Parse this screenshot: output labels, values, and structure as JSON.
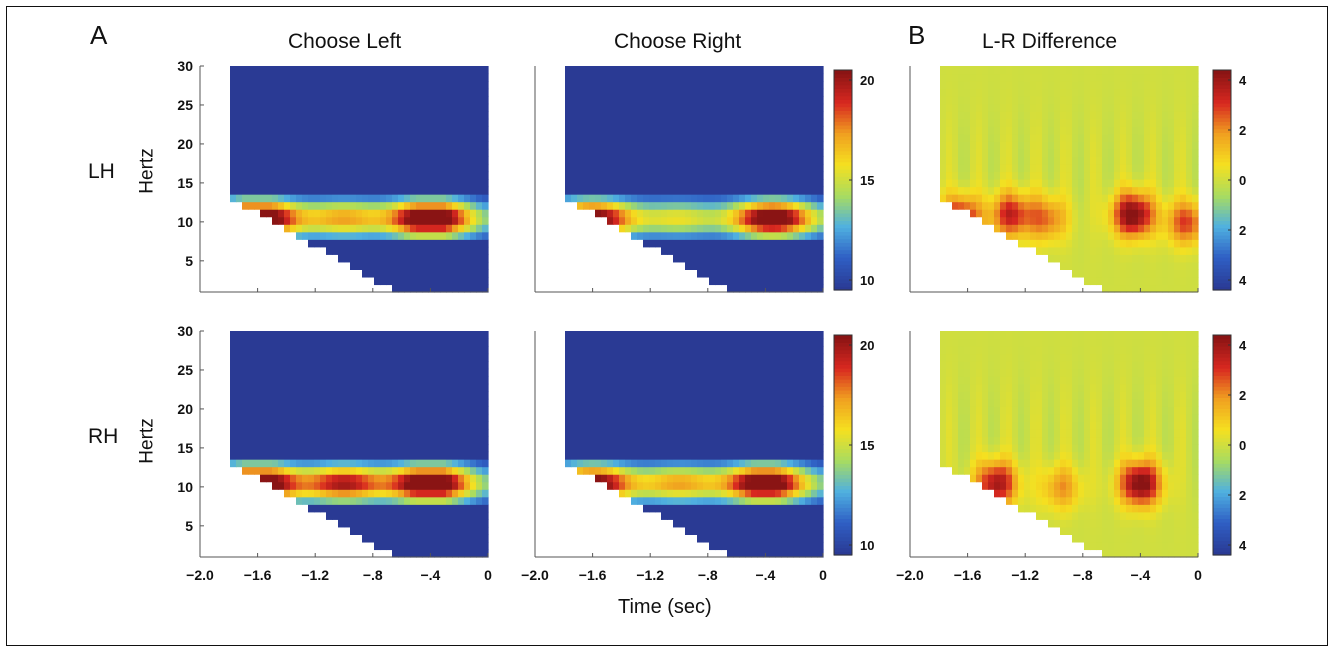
{
  "figure": {
    "panel_labels": [
      "A",
      "B"
    ],
    "column_titles": [
      "Choose Left",
      "Choose Right",
      "L-R Difference"
    ],
    "row_labels": [
      "LH",
      "RH"
    ],
    "ylabel": "Hertz",
    "xlabel": "Time (sec)",
    "colors": {
      "colormap": [
        "#2a3a94",
        "#2f5fc4",
        "#4fb0e0",
        "#a8dc60",
        "#f5e020",
        "#f0a020",
        "#d82820",
        "#8a1414"
      ],
      "background_field": "#a8d870"
    }
  },
  "chart_data": [
    {
      "type": "heatmap",
      "column": "Choose Left",
      "row": "LH",
      "xlim": [
        -2.0,
        0
      ],
      "ylim": [
        1,
        30
      ],
      "xticks": [
        "-2.0",
        "-1.6",
        "-1.2",
        "-.8",
        "-.4",
        "0"
      ],
      "yticks": [
        "5",
        "10",
        "15",
        "20",
        "25",
        "30"
      ],
      "colorbar": null,
      "band": {
        "freq_center": 10.5,
        "peaks": [
          [
            -1.6,
            1.0
          ],
          [
            -1.0,
            0.45
          ],
          [
            -0.4,
            1.0
          ]
        ]
      }
    },
    {
      "type": "heatmap",
      "column": "Choose Right",
      "row": "LH",
      "xlim": [
        -2.0,
        0
      ],
      "ylim": [
        1,
        30
      ],
      "xticks": [
        "-2.0",
        "-1.6",
        "-1.2",
        "-.8",
        "-.4",
        "0"
      ],
      "yticks": [],
      "colorbar": {
        "ticks": [
          "20",
          "15",
          "10"
        ],
        "range": [
          9,
          21
        ]
      },
      "band": {
        "freq_center": 10.5,
        "peaks": [
          [
            -1.6,
            0.85
          ],
          [
            -1.0,
            0.3
          ],
          [
            -0.35,
            0.9
          ]
        ]
      }
    },
    {
      "type": "heatmap",
      "column": "L-R Difference",
      "row": "LH",
      "xlim": [
        -2.0,
        0
      ],
      "ylim": [
        1,
        30
      ],
      "xticks": [
        "-2.0",
        "-1.6",
        "-1.2",
        "-.8",
        "-.4",
        "0"
      ],
      "yticks": [],
      "colorbar": {
        "ticks": [
          "4",
          "2",
          "0",
          "2",
          "4"
        ],
        "range": [
          -4.5,
          4.5
        ]
      },
      "blobs": [
        [
          -1.65,
          10.5,
          4.0
        ],
        [
          -1.3,
          11,
          3.5
        ],
        [
          -1.05,
          10.5,
          2.5
        ],
        [
          -0.45,
          11,
          5.0
        ],
        [
          -0.08,
          10,
          3.0
        ]
      ]
    },
    {
      "type": "heatmap",
      "column": "Choose Left",
      "row": "RH",
      "xlim": [
        -2.0,
        0
      ],
      "ylim": [
        1,
        30
      ],
      "xticks": [
        "-2.0",
        "-1.6",
        "-1.2",
        "-.8",
        "-.4",
        "0"
      ],
      "yticks": [
        "5",
        "10",
        "15",
        "20",
        "25",
        "30"
      ],
      "colorbar": null,
      "band": {
        "freq_center": 10.5,
        "peaks": [
          [
            -1.6,
            1.0
          ],
          [
            -1.0,
            0.7
          ],
          [
            -0.4,
            1.0
          ]
        ]
      }
    },
    {
      "type": "heatmap",
      "column": "Choose Right",
      "row": "RH",
      "xlim": [
        -2.0,
        0
      ],
      "ylim": [
        1,
        30
      ],
      "xticks": [
        "-2.0",
        "-1.6",
        "-1.2",
        "-.8",
        "-.4",
        "0"
      ],
      "yticks": [],
      "colorbar": {
        "ticks": [
          "20",
          "15",
          "10"
        ],
        "range": [
          9,
          21
        ]
      },
      "band": {
        "freq_center": 10.5,
        "peaks": [
          [
            -1.6,
            0.85
          ],
          [
            -1.0,
            0.45
          ],
          [
            -0.4,
            0.95
          ]
        ]
      }
    },
    {
      "type": "heatmap",
      "column": "L-R Difference",
      "row": "RH",
      "xlim": [
        -2.0,
        0
      ],
      "ylim": [
        1,
        30
      ],
      "xticks": [
        "-2.0",
        "-1.6",
        "-1.2",
        "-.8",
        "-.4",
        "0"
      ],
      "yticks": [],
      "colorbar": {
        "ticks": [
          "4",
          "2",
          "0",
          "2",
          "4"
        ],
        "range": [
          -4.5,
          4.5
        ]
      },
      "blobs": [
        [
          -1.4,
          10.5,
          4.2
        ],
        [
          -0.95,
          10,
          2.0
        ],
        [
          -0.4,
          10.5,
          5.0
        ]
      ]
    }
  ]
}
